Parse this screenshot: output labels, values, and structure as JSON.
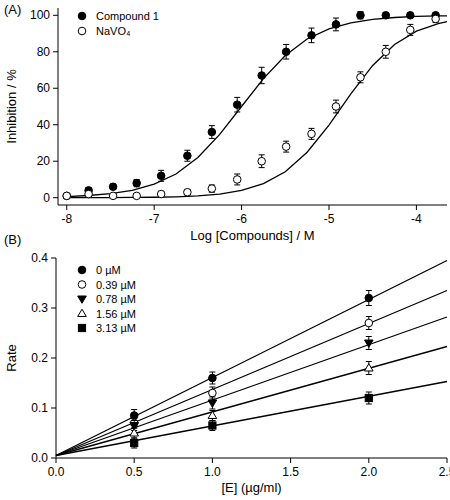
{
  "chart_data": [
    {
      "type": "scatter",
      "title": "(A)",
      "x_label": "Log [Compounds] / M",
      "y_label": "Inhibition / %",
      "xlim": [
        -8.1,
        -3.65
      ],
      "ylim": [
        -4,
        104
      ],
      "xticks": [
        -8,
        -7,
        -6,
        -5,
        -4
      ],
      "yticks": [
        0,
        20,
        40,
        60,
        80,
        100
      ],
      "legend": "upper left",
      "series": [
        {
          "name": "Compound 1",
          "color": "#000000",
          "marker": "circle",
          "x": [
            -8.0,
            -7.75,
            -7.47,
            -7.2,
            -6.92,
            -6.62,
            -6.34,
            -6.05,
            -5.77,
            -5.49,
            -5.2,
            -4.92,
            -4.64,
            -4.35,
            -4.07,
            -3.78
          ],
          "values": [
            1,
            4,
            6,
            8,
            12,
            23,
            36,
            51,
            67,
            80,
            89,
            95,
            100,
            100,
            100,
            100
          ],
          "errors": [
            1,
            1.5,
            1.5,
            2,
            3,
            3,
            3.5,
            4,
            4.5,
            4,
            4,
            3.5,
            2,
            1.5,
            1,
            1
          ],
          "fit": {
            "x": [
              -8,
              -7.75,
              -7.5,
              -7.25,
              -7,
              -6.75,
              -6.5,
              -6.25,
              -6,
              -5.75,
              -5.5,
              -5.25,
              -5,
              -4.75,
              -4.5,
              -4.25,
              -4,
              -3.75,
              -3.65
            ],
            "values": [
              0.6,
              1.2,
              2.2,
              4.0,
              7.4,
              13.0,
              22.0,
              34.7,
              50,
              65.3,
              78.0,
              87.0,
              92.6,
              95.9,
              97.8,
              98.8,
              99.4,
              99.7,
              99.7
            ]
          }
        },
        {
          "name": "NaVO₄",
          "color": "#000000",
          "marker": "circle-open",
          "x": [
            -8.0,
            -7.75,
            -7.47,
            -7.2,
            -6.92,
            -6.62,
            -6.34,
            -6.05,
            -5.77,
            -5.49,
            -5.2,
            -4.92,
            -4.64,
            -4.35,
            -4.07,
            -3.78
          ],
          "values": [
            1,
            2,
            1,
            1,
            2,
            3,
            5,
            10,
            20,
            28,
            35,
            50,
            66,
            80,
            92,
            98
          ],
          "errors": [
            1,
            1,
            1,
            1,
            1.5,
            1.5,
            2,
            3,
            3.5,
            3,
            3,
            3.5,
            3,
            3.5,
            3,
            2
          ],
          "fit": {
            "x": [
              -8,
              -7.75,
              -7.5,
              -7.25,
              -7,
              -6.75,
              -6.5,
              -6.25,
              -6,
              -5.75,
              -5.5,
              -5.25,
              -5,
              -4.75,
              -4.5,
              -4.25,
              -4,
              -3.75,
              -3.65
            ],
            "values": [
              0.02,
              0.03,
              0.07,
              0.13,
              0.26,
              0.5,
              1.0,
              2.0,
              4.0,
              7.7,
              14.2,
              24.9,
              39.8,
              56.9,
              72.5,
              84.0,
              91.3,
              95.4,
              96.5
            ]
          }
        }
      ]
    },
    {
      "type": "scatter",
      "title": "(B)",
      "x_label": "[E] (µg/ml)",
      "y_label": "Rate",
      "xlim": [
        0,
        2.5
      ],
      "ylim": [
        0,
        0.4
      ],
      "xticks": [
        {
          "value": 0,
          "label": "0.0"
        },
        0.5,
        {
          "value": 1,
          "label": "1.0"
        },
        1.5,
        {
          "value": 2,
          "label": "2.0"
        },
        2.5
      ],
      "yticks": [
        {
          "value": 0,
          "label": "0.0"
        },
        0.1,
        0.2,
        0.3,
        0.4
      ],
      "legend": "upper left",
      "series": [
        {
          "name": "0 µM",
          "color": "#000000",
          "marker": "circle",
          "x": [
            0.5,
            1,
            2
          ],
          "values": [
            0.085,
            0.16,
            0.32
          ],
          "errors": [
            0.012,
            0.012,
            0.015
          ],
          "fit": {
            "x": [
              0,
              2.5
            ],
            "values": [
              0.005,
              0.395
            ]
          }
        },
        {
          "name": "0.39 µM",
          "color": "#000000",
          "marker": "circle-open",
          "x": [
            0.5,
            1,
            2
          ],
          "values": [
            0.07,
            0.13,
            0.27
          ],
          "errors": [
            0.01,
            0.012,
            0.013
          ],
          "fit": {
            "x": [
              0,
              2.5
            ],
            "values": [
              0.005,
              0.335
            ]
          }
        },
        {
          "name": "0.78 µM",
          "color": "#000000",
          "marker": "triangle-down",
          "x": [
            0.5,
            1,
            2
          ],
          "values": [
            0.065,
            0.11,
            0.23
          ],
          "errors": [
            0.01,
            0.012,
            0.013
          ],
          "fit": {
            "x": [
              0,
              2.5
            ],
            "values": [
              0.005,
              0.282
            ]
          }
        },
        {
          "name": "1.56 µM",
          "color": "#000000",
          "marker": "triangle-up-open",
          "x": [
            0.5,
            1,
            2
          ],
          "values": [
            0.05,
            0.085,
            0.18
          ],
          "errors": [
            0.01,
            0.01,
            0.013
          ],
          "fit": {
            "x": [
              0,
              2.5
            ],
            "values": [
              0.005,
              0.223
            ]
          }
        },
        {
          "name": "3.13 µM",
          "color": "#000000",
          "marker": "square",
          "x": [
            0.5,
            1,
            2
          ],
          "values": [
            0.03,
            0.065,
            0.12
          ],
          "errors": [
            0.01,
            0.01,
            0.012
          ],
          "fit": {
            "x": [
              0,
              2.5
            ],
            "values": [
              0.005,
              0.153
            ]
          }
        }
      ]
    }
  ]
}
